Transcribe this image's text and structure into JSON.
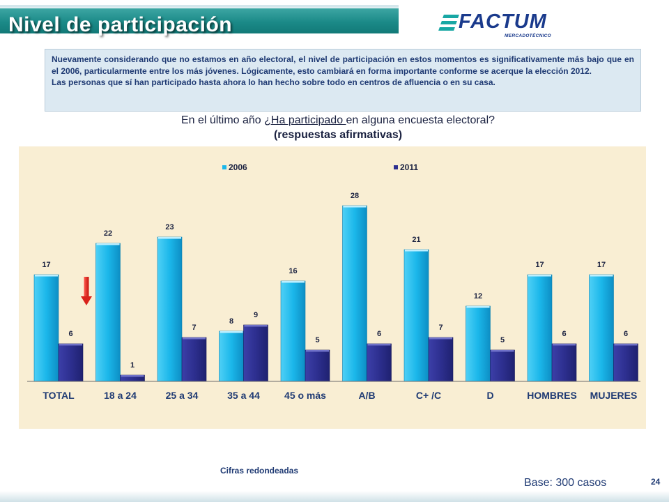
{
  "header": {
    "title": "Nivel de participación"
  },
  "logo": {
    "name": "FACTUM",
    "tagline": "MERCADOTÉCNICO"
  },
  "note": {
    "paragraph1": "Nuevamente considerando que no estamos en año electoral, el nivel de participación en estos momentos es significativamente más bajo que en el 2006, particularmente entre los más jóvenes. Lógicamente, esto cambiará en forma importante conforme se acerque la elección 2012.",
    "paragraph2": "Las personas que sí han participado hasta ahora lo han hecho sobre todo en centros de afluencia o en su casa."
  },
  "question": {
    "prefix": "En el último año ",
    "underlined": "¿Ha participado ",
    "suffix": "en alguna encuesta electoral?",
    "line2": "(respuestas afirmativas)"
  },
  "chart_data": {
    "type": "bar",
    "categories": [
      "TOTAL",
      "18 a 24",
      "25 a 34",
      "35 a 44",
      "45 o más",
      "A/B",
      "C+ /C",
      "D",
      "HOMBRES",
      "MUJERES"
    ],
    "series": [
      {
        "name": "2006",
        "values": [
          17,
          22,
          23,
          8,
          16,
          28,
          21,
          12,
          17,
          17
        ],
        "color": "#1bb7ea"
      },
      {
        "name": "2011",
        "values": [
          6,
          1,
          7,
          9,
          5,
          6,
          7,
          5,
          6,
          6
        ],
        "color": "#2d2f8f"
      }
    ],
    "ylim": [
      0,
      30
    ],
    "legend": "top",
    "grid": false,
    "annotations": [
      {
        "type": "down-arrow",
        "category": "TOTAL",
        "color": "#e32119"
      }
    ]
  },
  "footer": {
    "note": "Cifras redondeadas",
    "base": "Base: 300 casos",
    "page": "24"
  }
}
